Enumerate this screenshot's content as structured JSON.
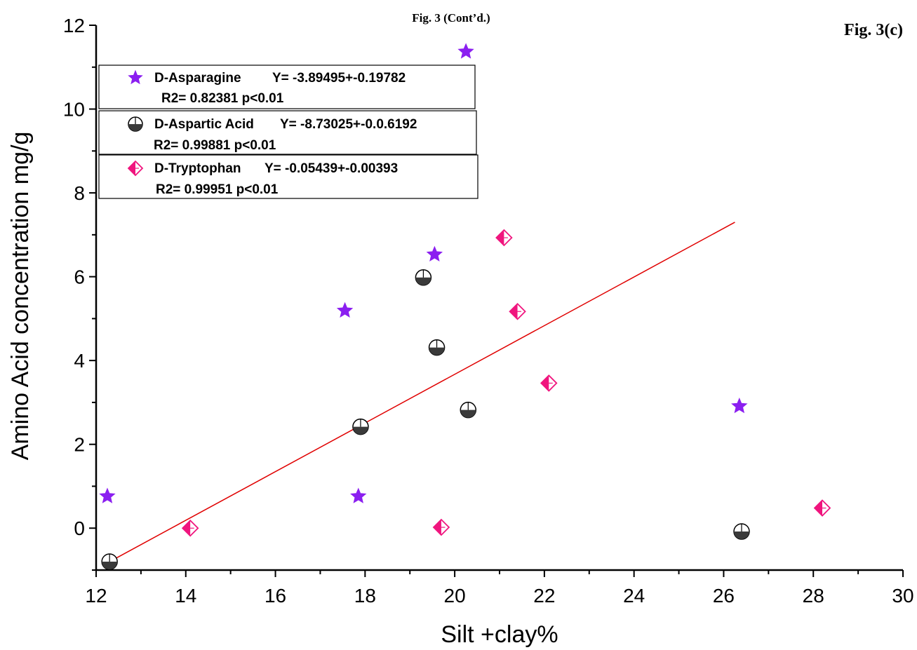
{
  "chart_data": {
    "type": "scatter",
    "figure_caption": "Fig. 3 (Cont’d.)",
    "panel_label": "Fig. 3(c)",
    "xlabel": "Silt +clay%",
    "ylabel": "Amino Acid concentration mg/g",
    "xlim": [
      12,
      30
    ],
    "ylim": [
      -1,
      12
    ],
    "x_ticks": [
      "12",
      "14",
      "16",
      "18",
      "20",
      "22",
      "24",
      "26",
      "28",
      "30"
    ],
    "y_ticks": [
      "0",
      "2",
      "4",
      "6",
      "8",
      "10",
      "12"
    ],
    "grid": false,
    "legend_position": "top-left",
    "series": [
      {
        "name": "D-Asparagine",
        "equation": "Y= -3.89495+-0.19782",
        "stats": "R2= 0.82381 p<0.01",
        "marker": "star",
        "color": "#8B1FF0",
        "x": [
          12.25,
          17.55,
          17.85,
          19.55,
          20.25,
          26.35
        ],
        "y": [
          0.76,
          5.19,
          0.76,
          6.53,
          11.37,
          2.91
        ]
      },
      {
        "name": "D-Aspartic Acid",
        "equation": "Y= -8.73025+-0.0.6192",
        "stats": "R2= 0.99881 p<0.01",
        "marker": "half-circle",
        "color": "#3a3a3a",
        "x": [
          12.3,
          17.9,
          19.3,
          19.6,
          20.3,
          26.4
        ],
        "y": [
          -0.8,
          2.42,
          5.98,
          4.31,
          2.82,
          -0.08
        ]
      },
      {
        "name": "D-Tryptophan",
        "equation": "Y= -0.05439+-0.00393",
        "stats": "R2= 0.99951 p<0.01",
        "marker": "half-diamond",
        "color": "#F0157E",
        "x": [
          14.1,
          19.7,
          21.1,
          21.4,
          22.1,
          28.2
        ],
        "y": [
          0.0,
          0.02,
          6.93,
          5.17,
          3.46,
          0.48
        ]
      }
    ],
    "fit_line": {
      "color": "#E00000",
      "x": [
        12.3,
        26.25
      ],
      "y": [
        -0.8,
        7.3
      ]
    }
  }
}
